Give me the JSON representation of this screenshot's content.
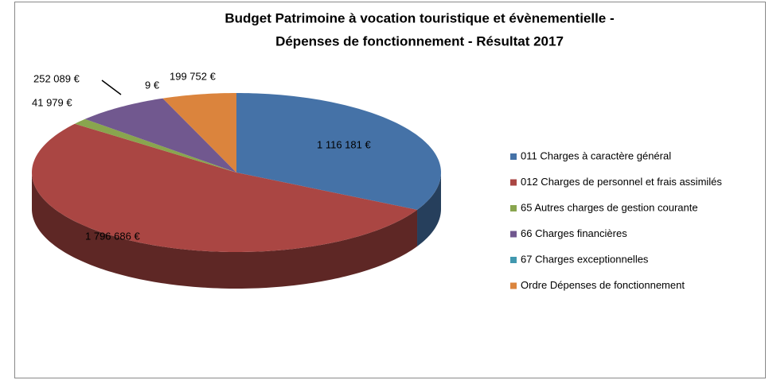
{
  "chart_data": {
    "type": "pie3d",
    "title_lines": [
      "Budget Patrimoine à vocation touristique et évènementielle -",
      "Dépenses de fonctionnement - Résultat 2017"
    ],
    "series": [
      {
        "name": "011 Charges à caractère général",
        "color": "#4572a7",
        "values": [
          1116181
        ],
        "value_labels": [
          "1 116 181 €"
        ]
      },
      {
        "name": "012 Charges de personnel et frais assimilés",
        "color": "#aa4643",
        "values": [
          1796686
        ],
        "value_labels": [
          "1 796 686 €"
        ]
      },
      {
        "name": "65 Autres charges de gestion courante",
        "color": "#89a54e",
        "values": [
          41979
        ],
        "value_labels": [
          "41 979 €"
        ]
      },
      {
        "name": "66 Charges financières",
        "color": "#71588f",
        "values": [
          252089
        ],
        "value_labels": [
          "252 089 €"
        ]
      },
      {
        "name": "67 Charges exceptionnelles",
        "color": "#4198af",
        "values": [
          9
        ],
        "value_labels": [
          "9 €"
        ]
      },
      {
        "name": "Ordre Dépenses de fonctionnement",
        "color": "#db843d",
        "values": [
          199752
        ],
        "value_labels": [
          "199 752 €"
        ]
      }
    ],
    "legend": "right"
  }
}
